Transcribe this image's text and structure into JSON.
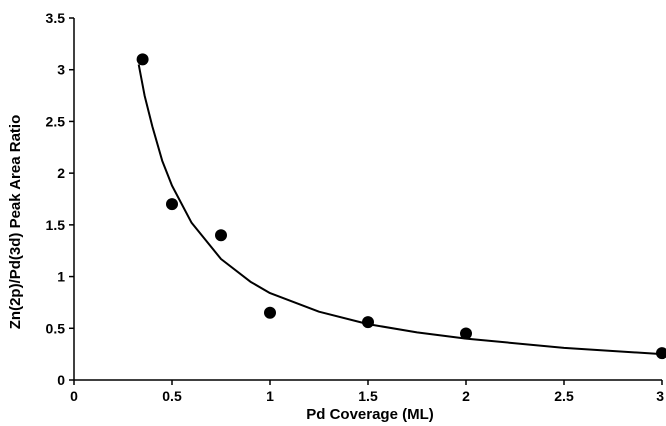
{
  "chart_data": {
    "type": "scatter",
    "title": "",
    "xlabel": "Pd Coverage (ML)",
    "ylabel": "Zn(2p)/Pd(3d) Peak Area Ratio",
    "xlim": [
      0,
      3
    ],
    "ylim": [
      0,
      3.5
    ],
    "xticks": [
      "0",
      "0.5",
      "1",
      "1.5",
      "2",
      "2.5",
      "3"
    ],
    "yticks": [
      "0",
      "0.5",
      "1",
      "1.5",
      "2",
      "2.5",
      "3",
      "3.5"
    ],
    "grid": false,
    "legend": "none",
    "series": [
      {
        "kind": "points",
        "x": [
          0.35,
          0.5,
          0.75,
          1.0,
          1.5,
          2.0,
          3.0
        ],
        "y": [
          3.1,
          1.7,
          1.4,
          0.65,
          0.56,
          0.45,
          0.26
        ]
      },
      {
        "kind": "fit-curve",
        "x": [
          0.33,
          0.36,
          0.4,
          0.45,
          0.5,
          0.6,
          0.75,
          0.9,
          1.0,
          1.25,
          1.5,
          1.75,
          2.0,
          2.5,
          3.0
        ],
        "y": [
          3.05,
          2.75,
          2.45,
          2.12,
          1.88,
          1.52,
          1.17,
          0.95,
          0.84,
          0.66,
          0.54,
          0.46,
          0.4,
          0.31,
          0.25
        ]
      }
    ],
    "colors": {
      "marker": "#000000",
      "line": "#000000"
    }
  }
}
